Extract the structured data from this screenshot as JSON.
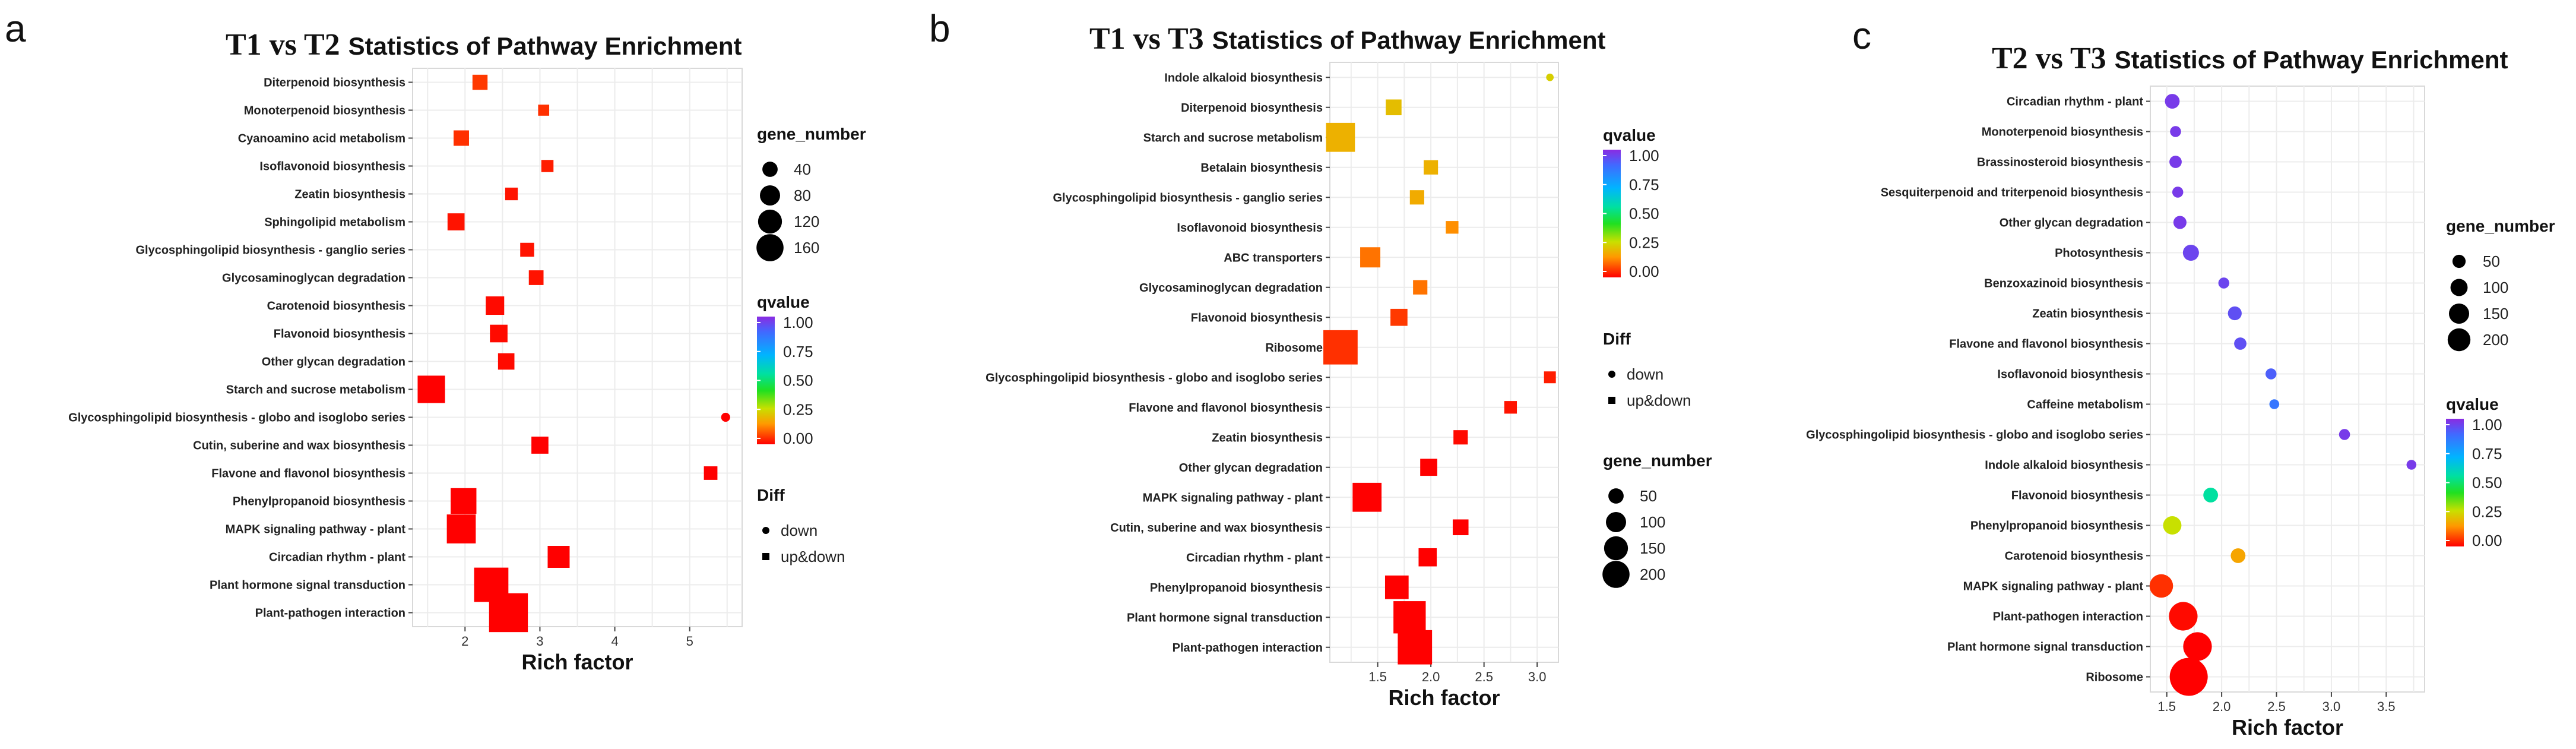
{
  "chart_data": [
    {
      "type": "scatter",
      "panel": "a",
      "title_part1": "T1 vs T2",
      "title_part2": "Statistics of Pathway Enrichment",
      "xlabel": "Rich factor",
      "ylabel": "",
      "xlim": [
        1.3,
        5.7
      ],
      "xticks": [
        2,
        3,
        4,
        5
      ],
      "xtick_labels": [
        "2",
        "3",
        "4",
        "5"
      ],
      "color_legend": {
        "title": "qvalue",
        "ticks": [
          "1.00",
          "0.75",
          "0.50",
          "0.25",
          "0.00"
        ]
      },
      "size_legend": {
        "title": "gene_number",
        "values": [
          40,
          80,
          120,
          160
        ],
        "labels": [
          "40",
          "80",
          "120",
          "160"
        ]
      },
      "shape_legend": {
        "title": "Diff",
        "items": [
          "down",
          "up&down"
        ]
      },
      "points": [
        {
          "pathway": "Diterpenoid biosynthesis",
          "rich_factor": 2.2,
          "gene_number": 14,
          "qvalue": 0.06,
          "diff": "up&down"
        },
        {
          "pathway": "Monoterpenoid biosynthesis",
          "rich_factor": 3.05,
          "gene_number": 5,
          "qvalue": 0.05,
          "diff": "up&down"
        },
        {
          "pathway": "Cyanoamino acid metabolism",
          "rich_factor": 1.95,
          "gene_number": 15,
          "qvalue": 0.05,
          "diff": "up&down"
        },
        {
          "pathway": "Isoflavonoid biosynthesis",
          "rich_factor": 3.1,
          "gene_number": 7,
          "qvalue": 0.03,
          "diff": "up&down"
        },
        {
          "pathway": "Zeatin biosynthesis",
          "rich_factor": 2.62,
          "gene_number": 8,
          "qvalue": 0.02,
          "diff": "up&down"
        },
        {
          "pathway": "Sphingolipid metabolism",
          "rich_factor": 1.88,
          "gene_number": 20,
          "qvalue": 0.02,
          "diff": "up&down"
        },
        {
          "pathway": "Glycosphingolipid biosynthesis - ganglio series",
          "rich_factor": 2.83,
          "gene_number": 11,
          "qvalue": 0.02,
          "diff": "up&down"
        },
        {
          "pathway": "Glycosaminoglycan degradation",
          "rich_factor": 2.95,
          "gene_number": 13,
          "qvalue": 0.02,
          "diff": "up&down"
        },
        {
          "pathway": "Carotenoid biosynthesis",
          "rich_factor": 2.4,
          "gene_number": 25,
          "qvalue": 0.01,
          "diff": "up&down"
        },
        {
          "pathway": "Flavonoid biosynthesis",
          "rich_factor": 2.45,
          "gene_number": 22,
          "qvalue": 0.01,
          "diff": "up&down"
        },
        {
          "pathway": "Other glycan degradation",
          "rich_factor": 2.55,
          "gene_number": 18,
          "qvalue": 0.01,
          "diff": "up&down"
        },
        {
          "pathway": "Starch and sucrose metabolism",
          "rich_factor": 1.55,
          "gene_number": 70,
          "qvalue": 0.0,
          "diff": "up&down"
        },
        {
          "pathway": "Glycosphingolipid biosynthesis - globo and isoglobo series",
          "rich_factor": 5.48,
          "gene_number": 5,
          "qvalue": 0.0,
          "diff": "down"
        },
        {
          "pathway": "Cutin, suberine and wax biosynthesis",
          "rich_factor": 3.0,
          "gene_number": 20,
          "qvalue": 0.0,
          "diff": "up&down"
        },
        {
          "pathway": "Flavone and flavonol biosynthesis",
          "rich_factor": 5.28,
          "gene_number": 10,
          "qvalue": 0.0,
          "diff": "up&down"
        },
        {
          "pathway": "Phenylpropanoid biosynthesis",
          "rich_factor": 1.98,
          "gene_number": 60,
          "qvalue": 0.0,
          "diff": "up&down"
        },
        {
          "pathway": "MAPK signaling pathway - plant",
          "rich_factor": 1.95,
          "gene_number": 80,
          "qvalue": 0.0,
          "diff": "up&down"
        },
        {
          "pathway": "Circadian rhythm - plant",
          "rich_factor": 3.25,
          "gene_number": 40,
          "qvalue": 0.0,
          "diff": "up&down"
        },
        {
          "pathway": "Plant hormone signal transduction",
          "rich_factor": 2.35,
          "gene_number": 120,
          "qvalue": 0.0,
          "diff": "up&down"
        },
        {
          "pathway": "Plant-pathogen interaction",
          "rich_factor": 2.58,
          "gene_number": 160,
          "qvalue": 0.0,
          "diff": "up&down"
        }
      ]
    },
    {
      "type": "scatter",
      "panel": "b",
      "title_part1": "T1 vs T3",
      "title_part2": "Statistics of Pathway Enrichment",
      "xlabel": "Rich factor",
      "ylabel": "",
      "xlim": [
        1.05,
        3.2
      ],
      "xticks": [
        1.5,
        2.0,
        2.5,
        3.0
      ],
      "xtick_labels": [
        "1.5",
        "2.0",
        "2.5",
        "3.0"
      ],
      "color_legend": {
        "title": "qvalue",
        "ticks": [
          "1.00",
          "0.75",
          "0.50",
          "0.25",
          "0.00"
        ]
      },
      "size_legend": {
        "title": "gene_number",
        "values": [
          50,
          100,
          150,
          200
        ],
        "labels": [
          "50",
          "100",
          "150",
          "200"
        ]
      },
      "shape_legend": {
        "title": "Diff",
        "items": [
          "down",
          "up&down"
        ]
      },
      "points": [
        {
          "pathway": "Indole alkaloid biosynthesis",
          "rich_factor": 3.12,
          "gene_number": 3,
          "qvalue": 0.25,
          "diff": "down"
        },
        {
          "pathway": "Diterpenoid biosynthesis",
          "rich_factor": 1.65,
          "gene_number": 20,
          "qvalue": 0.22,
          "diff": "up&down"
        },
        {
          "pathway": "Starch and sucrose metabolism",
          "rich_factor": 1.15,
          "gene_number": 100,
          "qvalue": 0.2,
          "diff": "up&down"
        },
        {
          "pathway": "Betalain biosynthesis",
          "rich_factor": 2.0,
          "gene_number": 15,
          "qvalue": 0.2,
          "diff": "up&down"
        },
        {
          "pathway": "Glycosphingolipid biosynthesis - ganglio series",
          "rich_factor": 1.87,
          "gene_number": 15,
          "qvalue": 0.19,
          "diff": "up&down"
        },
        {
          "pathway": "Isoflavonoid biosynthesis",
          "rich_factor": 2.2,
          "gene_number": 10,
          "qvalue": 0.15,
          "diff": "up&down"
        },
        {
          "pathway": "ABC transporters",
          "rich_factor": 1.43,
          "gene_number": 40,
          "qvalue": 0.12,
          "diff": "up&down"
        },
        {
          "pathway": "Glycosaminoglycan degradation",
          "rich_factor": 1.9,
          "gene_number": 15,
          "qvalue": 0.12,
          "diff": "up&down"
        },
        {
          "pathway": "Flavonoid biosynthesis",
          "rich_factor": 1.7,
          "gene_number": 25,
          "qvalue": 0.06,
          "diff": "up&down"
        },
        {
          "pathway": "Ribosome",
          "rich_factor": 1.15,
          "gene_number": 150,
          "qvalue": 0.05,
          "diff": "up&down"
        },
        {
          "pathway": "Glycosphingolipid biosynthesis - globo and isoglobo series",
          "rich_factor": 3.12,
          "gene_number": 8,
          "qvalue": 0.03,
          "diff": "up&down"
        },
        {
          "pathway": "Flavone and flavonol biosynthesis",
          "rich_factor": 2.75,
          "gene_number": 10,
          "qvalue": 0.02,
          "diff": "up&down"
        },
        {
          "pathway": "Zeatin biosynthesis",
          "rich_factor": 2.28,
          "gene_number": 15,
          "qvalue": 0.01,
          "diff": "up&down"
        },
        {
          "pathway": "Other glycan degradation",
          "rich_factor": 1.98,
          "gene_number": 25,
          "qvalue": 0.0,
          "diff": "up&down"
        },
        {
          "pathway": "MAPK signaling pathway - plant",
          "rich_factor": 1.4,
          "gene_number": 100,
          "qvalue": 0.0,
          "diff": "up&down"
        },
        {
          "pathway": "Cutin, suberine and wax biosynthesis",
          "rich_factor": 2.28,
          "gene_number": 20,
          "qvalue": 0.0,
          "diff": "up&down"
        },
        {
          "pathway": "Circadian rhythm - plant",
          "rich_factor": 1.97,
          "gene_number": 30,
          "qvalue": 0.0,
          "diff": "up&down"
        },
        {
          "pathway": "Phenylpropanoid biosynthesis",
          "rich_factor": 1.68,
          "gene_number": 60,
          "qvalue": 0.0,
          "diff": "up&down"
        },
        {
          "pathway": "Plant hormone signal transduction",
          "rich_factor": 1.8,
          "gene_number": 130,
          "qvalue": 0.0,
          "diff": "up&down"
        },
        {
          "pathway": "Plant-pathogen interaction",
          "rich_factor": 1.85,
          "gene_number": 150,
          "qvalue": 0.0,
          "diff": "up&down"
        }
      ]
    },
    {
      "type": "scatter",
      "panel": "c",
      "title_part1": "T2 vs T3",
      "title_part2": "Statistics of Pathway Enrichment",
      "xlabel": "Rich factor",
      "ylabel": "",
      "xlim": [
        1.35,
        3.85
      ],
      "xticks": [
        1.5,
        2.0,
        2.5,
        3.0,
        3.5
      ],
      "xtick_labels": [
        "1.5",
        "2.0",
        "2.5",
        "3.0",
        "3.5"
      ],
      "color_legend": {
        "title": "qvalue",
        "ticks": [
          "1.00",
          "0.75",
          "0.50",
          "0.25",
          "0.00"
        ]
      },
      "size_legend": {
        "title": "gene_number",
        "values": [
          50,
          100,
          150,
          200
        ],
        "labels": [
          "50",
          "100",
          "150",
          "200"
        ]
      },
      "points": [
        {
          "pathway": "Circadian rhythm - plant",
          "rich_factor": 1.55,
          "gene_number": 15,
          "qvalue": 0.97
        },
        {
          "pathway": "Monoterpenoid biosynthesis",
          "rich_factor": 1.58,
          "gene_number": 5,
          "qvalue": 0.97
        },
        {
          "pathway": "Brassinosteroid biosynthesis",
          "rich_factor": 1.58,
          "gene_number": 8,
          "qvalue": 0.97
        },
        {
          "pathway": "Sesquiterpenoid and triterpenoid biosynthesis",
          "rich_factor": 1.6,
          "gene_number": 5,
          "qvalue": 0.97
        },
        {
          "pathway": "Other glycan degradation",
          "rich_factor": 1.62,
          "gene_number": 10,
          "qvalue": 0.97
        },
        {
          "pathway": "Photosynthesis",
          "rich_factor": 1.72,
          "gene_number": 20,
          "qvalue": 0.95
        },
        {
          "pathway": "Benzoxazinoid biosynthesis",
          "rich_factor": 2.02,
          "gene_number": 5,
          "qvalue": 0.95
        },
        {
          "pathway": "Zeatin biosynthesis",
          "rich_factor": 2.12,
          "gene_number": 12,
          "qvalue": 0.93
        },
        {
          "pathway": "Flavone and flavonol biosynthesis",
          "rich_factor": 2.17,
          "gene_number": 8,
          "qvalue": 0.93
        },
        {
          "pathway": "Isoflavonoid biosynthesis",
          "rich_factor": 2.45,
          "gene_number": 5,
          "qvalue": 0.9
        },
        {
          "pathway": "Caffeine metabolism",
          "rich_factor": 2.48,
          "gene_number": 3,
          "qvalue": 0.85
        },
        {
          "pathway": "Glycosphingolipid biosynthesis - globo and isoglobo series",
          "rich_factor": 3.12,
          "gene_number": 5,
          "qvalue": 0.97
        },
        {
          "pathway": "Indole alkaloid biosynthesis",
          "rich_factor": 3.73,
          "gene_number": 3,
          "qvalue": 0.97
        },
        {
          "pathway": "Flavonoid biosynthesis",
          "rich_factor": 1.9,
          "gene_number": 15,
          "qvalue": 0.55
        },
        {
          "pathway": "Phenylpropanoid biosynthesis",
          "rich_factor": 1.55,
          "gene_number": 30,
          "qvalue": 0.28
        },
        {
          "pathway": "Carotenoid biosynthesis",
          "rich_factor": 2.15,
          "gene_number": 15,
          "qvalue": 0.18
        },
        {
          "pathway": "MAPK signaling pathway - plant",
          "rich_factor": 1.45,
          "gene_number": 60,
          "qvalue": 0.05
        },
        {
          "pathway": "Plant-pathogen interaction",
          "rich_factor": 1.65,
          "gene_number": 100,
          "qvalue": 0.01
        },
        {
          "pathway": "Plant hormone signal transduction",
          "rich_factor": 1.78,
          "gene_number": 100,
          "qvalue": 0.0
        },
        {
          "pathway": "Ribosome",
          "rich_factor": 1.7,
          "gene_number": 200,
          "qvalue": 0.0
        }
      ]
    }
  ]
}
